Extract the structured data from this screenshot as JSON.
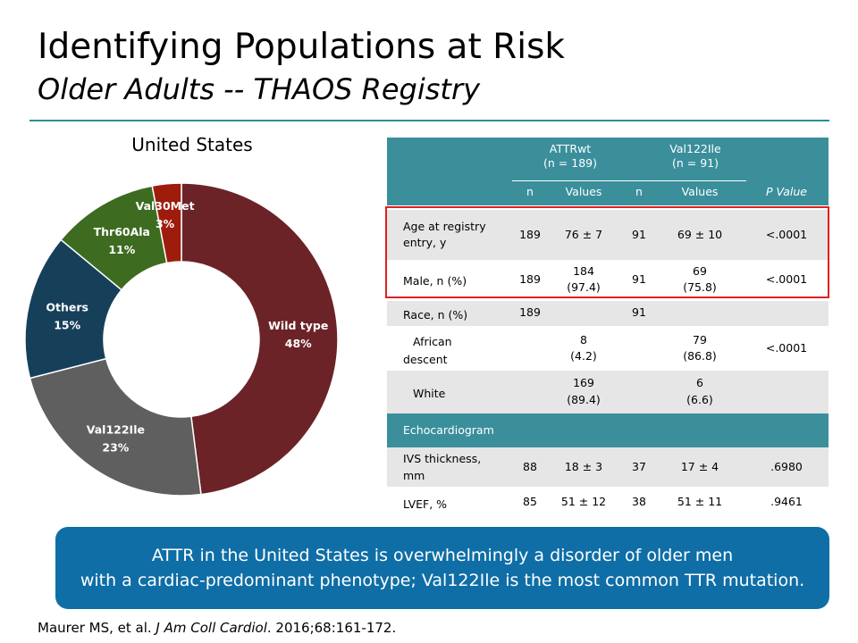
{
  "slide": {
    "title": "Identifying Populations at Risk",
    "subtitle": "Older Adults -- THAOS Registry",
    "banner_line1": "ATTR in the United States is overwhelmingly a disorder of older men",
    "banner_line2": "with a cardiac-predominant phenotype; Val122Ile is the most common TTR mutation.",
    "citation_authors": "Maurer MS, et al. ",
    "citation_journal": "J Am Coll Cardiol",
    "citation_rest": ". 2016;68:161-172."
  },
  "chart_data": {
    "type": "pie",
    "title": "United States",
    "slices": [
      {
        "name": "Wild type",
        "label": "48%",
        "value": 48,
        "color": "#6b2327"
      },
      {
        "name": "Val122Ile",
        "label": "23%",
        "value": 23,
        "color": "#5f5f5f"
      },
      {
        "name": "Others",
        "label": "15%",
        "value": 15,
        "color": "#163f5a"
      },
      {
        "name": "Thr60Ala",
        "label": "11%",
        "value": 11,
        "color": "#3d6b20"
      },
      {
        "name": "Val30Met",
        "label": "3%",
        "value": 3,
        "color": "#9e1c0c"
      }
    ]
  },
  "table": {
    "group1": "ATTRwt",
    "group1_n": "(n = 189)",
    "group2": "Val122Ile",
    "group2_n": "(n = 91)",
    "col_n": "n",
    "col_values": "Values",
    "col_p": "P Value",
    "rows": [
      {
        "label1": "Age at registry",
        "label2": "entry, y",
        "n1": "189",
        "v1a": "76 ± 7",
        "v1b": "",
        "n2": "91",
        "v2a": "69 ± 10",
        "v2b": "",
        "p": "<.0001"
      },
      {
        "label1": "Male, n (%)",
        "label2": "",
        "n1": "189",
        "v1a": "184",
        "v1b": "(97.4)",
        "n2": "91",
        "v2a": "69",
        "v2b": "(75.8)",
        "p": "<.0001"
      },
      {
        "label1": "Race, n (%)",
        "label2": "",
        "n1": "189",
        "v1a": "",
        "v1b": "",
        "n2": "91",
        "v2a": "",
        "v2b": "",
        "p": ""
      },
      {
        "label1": "African",
        "label2": "descent",
        "n1": "",
        "v1a": "8",
        "v1b": "(4.2)",
        "n2": "",
        "v2a": "79",
        "v2b": "(86.8)",
        "p": "<.0001"
      },
      {
        "label1": "White",
        "label2": "",
        "n1": "",
        "v1a": "169",
        "v1b": "(89.4)",
        "n2": "",
        "v2a": "6",
        "v2b": "(6.6)",
        "p": ""
      },
      {
        "label1": "IVS thickness,",
        "label2": "mm",
        "n1": "88",
        "v1a": "18 ± 3",
        "v1b": "",
        "n2": "37",
        "v2a": "17 ± 4",
        "v2b": "",
        "p": ".6980"
      },
      {
        "label1": "LVEF, %",
        "label2": "",
        "n1": "85",
        "v1a": "51 ± 12",
        "v1b": "",
        "n2": "38",
        "v2a": "51 ± 11",
        "v2b": "",
        "p": ".9461"
      }
    ],
    "section_label": "Echocardiogram"
  }
}
